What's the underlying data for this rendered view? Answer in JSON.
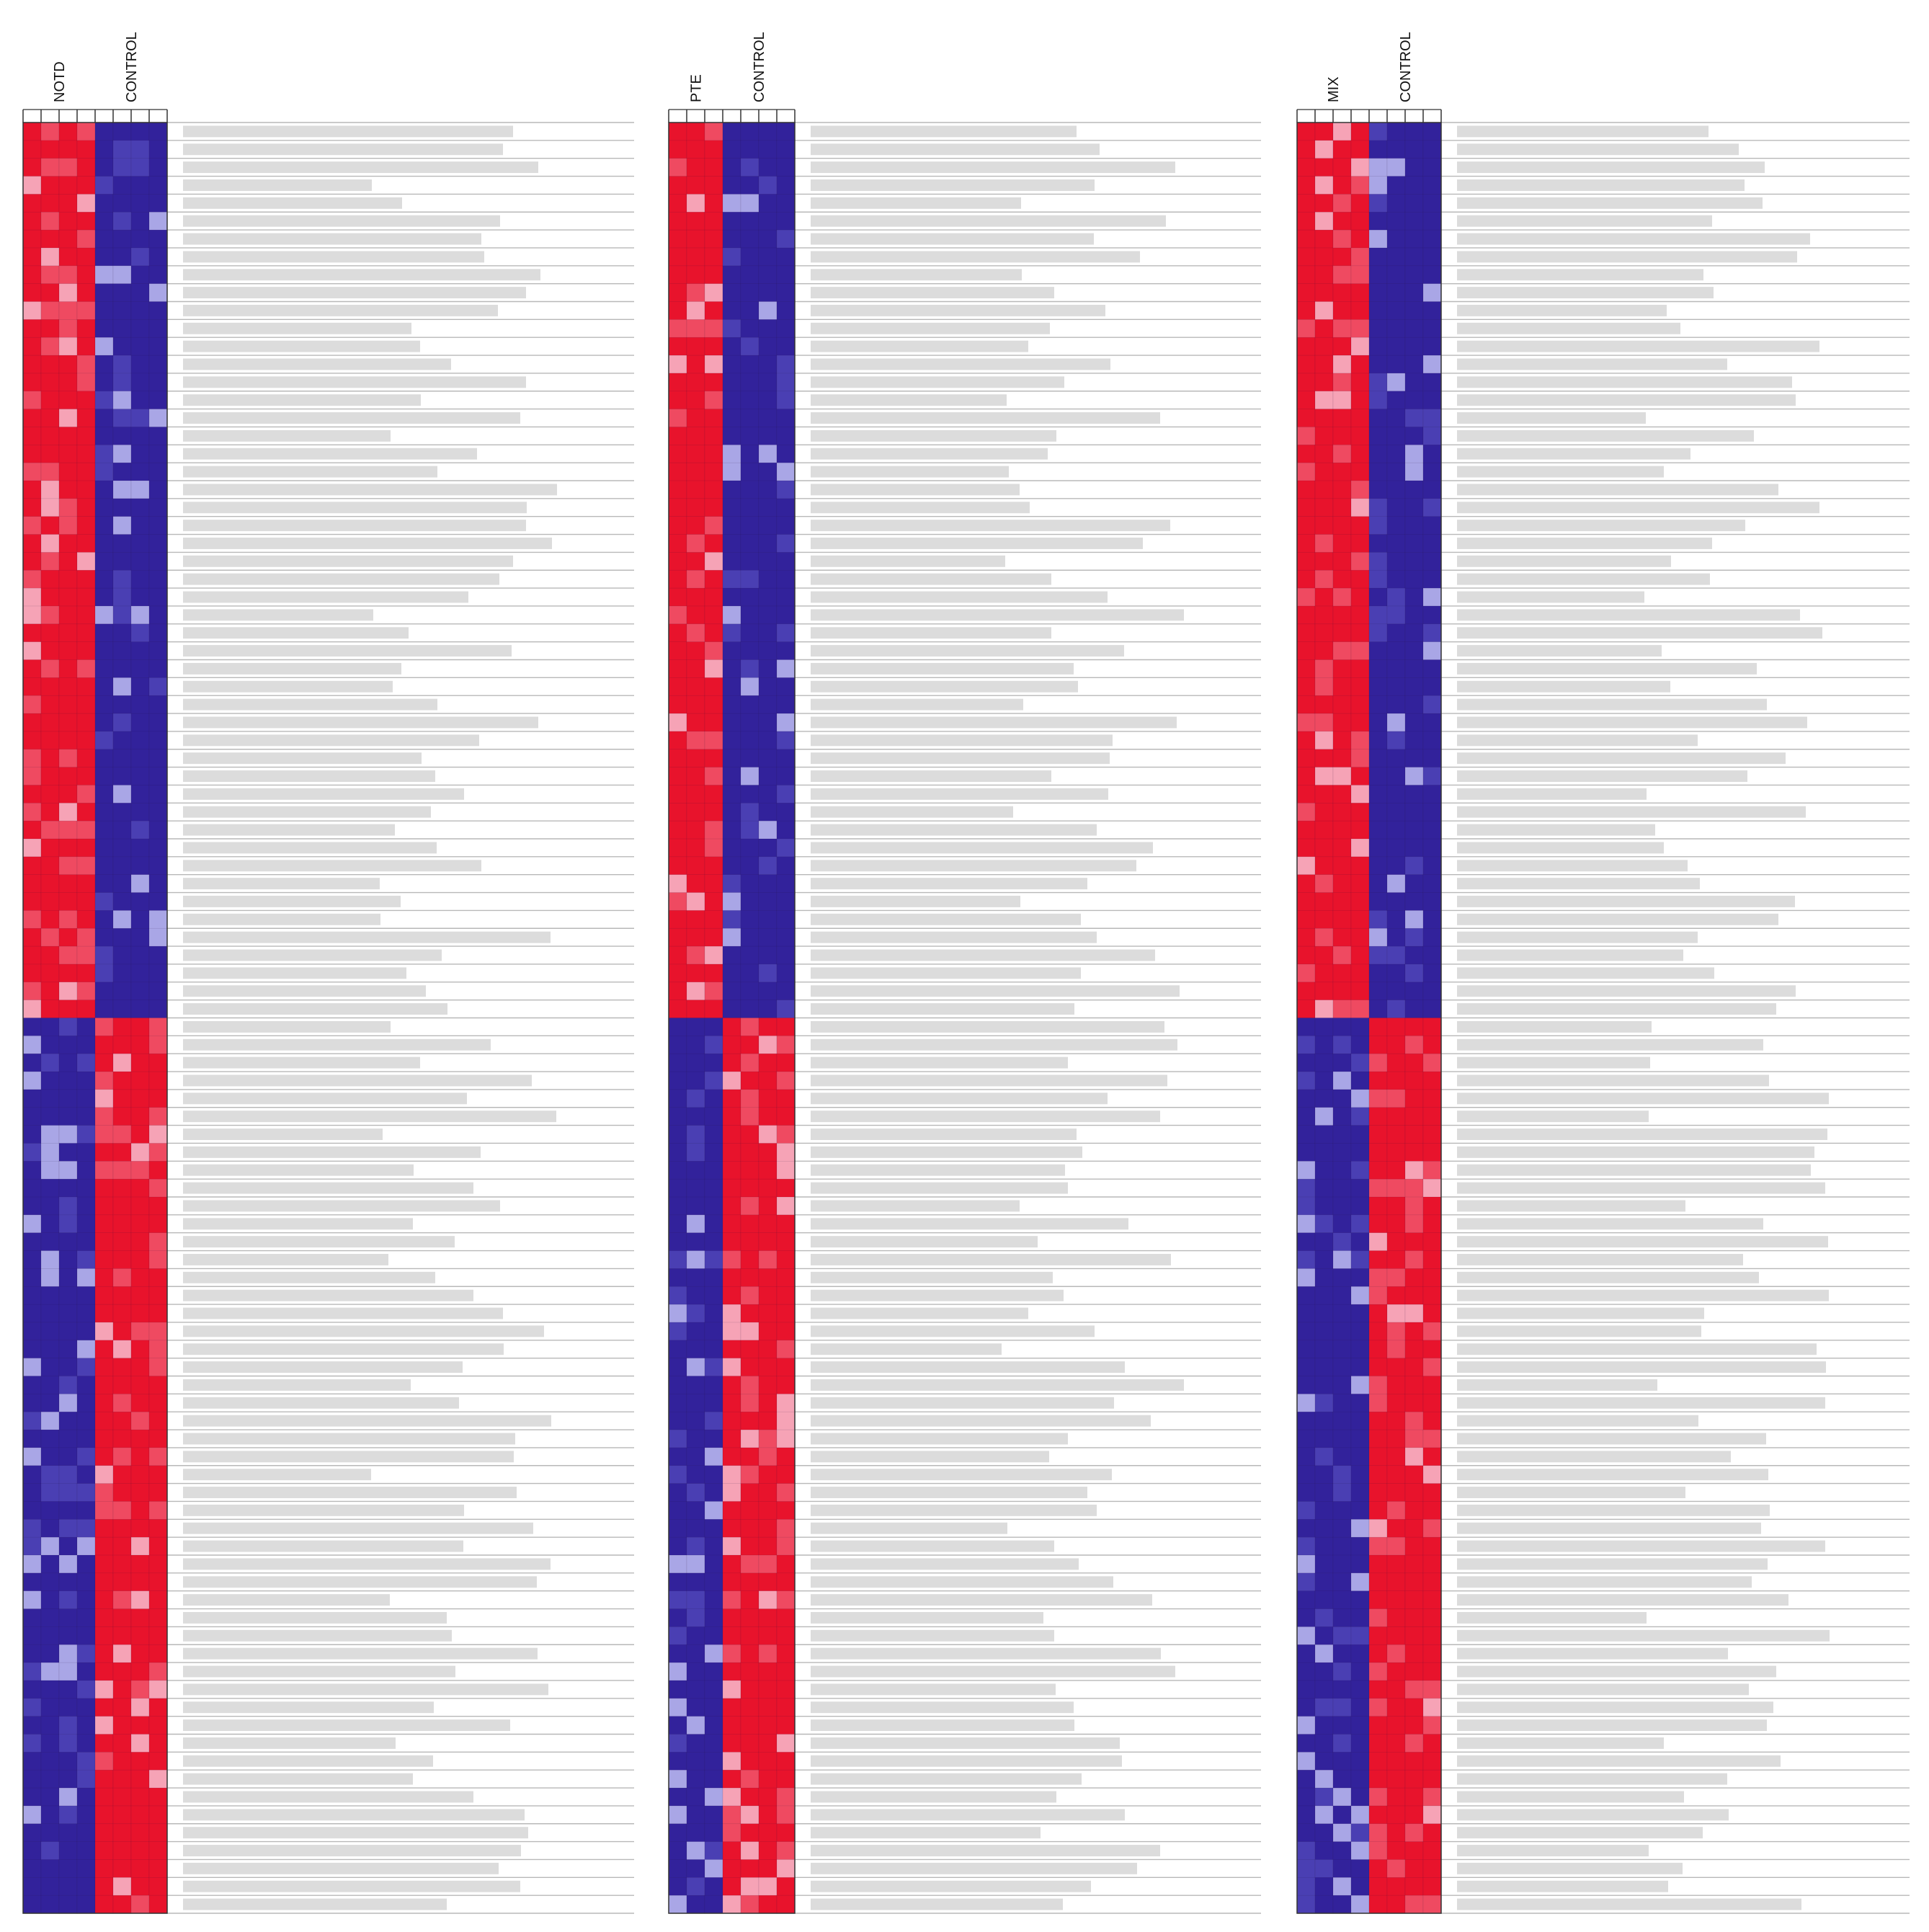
{
  "chart_data": {
    "type": "heatmap",
    "title": "",
    "rows_per_panel": 100,
    "up_down_split_row": 50,
    "colors": {
      "high": "#e8132c",
      "mid_high": "#f6a3b6",
      "mid_low": "#a9a6e6",
      "low": "#32229b",
      "row_line": "#b8b8b8",
      "label_text": "#b4b4b4"
    },
    "panels": [
      {
        "id": "notd",
        "groups": [
          {
            "label": "NOTD",
            "columns": 4
          },
          {
            "label": "CONTROL",
            "columns": 4
          }
        ],
        "pattern": "upper block: NOTD high, CONTROL low; lower block: NOTD low, CONTROL high"
      },
      {
        "id": "pte",
        "groups": [
          {
            "label": "PTE",
            "columns": 3
          },
          {
            "label": "CONTROL",
            "columns": 4
          }
        ],
        "pattern": "upper block: PTE high, CONTROL low; lower block: PTE low, CONTROL high"
      },
      {
        "id": "mix",
        "groups": [
          {
            "label": "MIX",
            "columns": 4
          },
          {
            "label": "CONTROL",
            "columns": 4
          }
        ],
        "pattern": "upper block: MIX high, CONTROL low; lower block: MIX low, CONTROL high"
      }
    ],
    "row_labels_legible": false
  }
}
